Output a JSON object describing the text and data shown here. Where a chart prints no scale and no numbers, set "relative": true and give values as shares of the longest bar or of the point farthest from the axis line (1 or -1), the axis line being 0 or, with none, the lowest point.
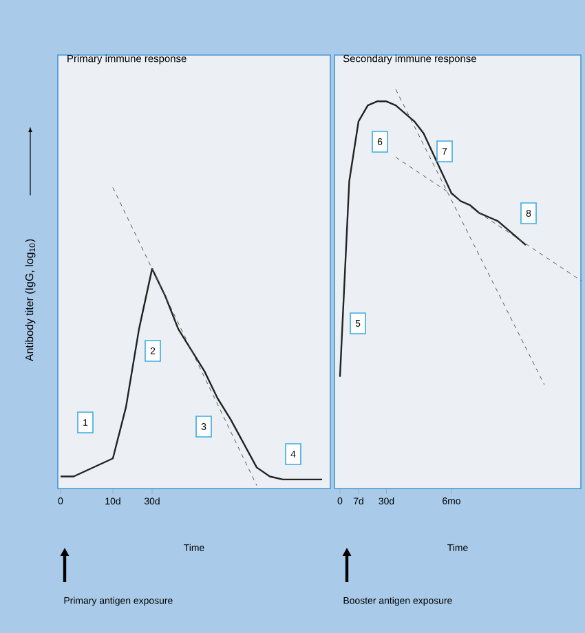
{
  "chart_data": [
    {
      "type": "line",
      "relative": true,
      "title": "Primary immune response",
      "xlabel": "Time",
      "ylabel": "Antibody titer (IgG, log$_{10}$)",
      "categories": [
        "0",
        null,
        null,
        null,
        "10d",
        null,
        null,
        "30d",
        null,
        null,
        null,
        null,
        null,
        null,
        null,
        null,
        null,
        null,
        null,
        null,
        null
      ],
      "series": [
        {
          "color": "#222222",
          "line_style": "solid",
          "values": [
            0.04,
            0.04,
            0.06,
            0.08,
            0.1,
            0.27,
            0.53,
            0.73,
            0.64,
            0.53,
            0.46,
            0.39,
            0.3,
            0.23,
            0.15,
            0.07,
            0.04,
            0.03,
            0.03,
            0.03,
            0.03
          ]
        },
        {
          "color": "#555555",
          "line_style": "dashed",
          "values": [
            null,
            null,
            null,
            null,
            1.0,
            null,
            null,
            null,
            null,
            null,
            null,
            null,
            null,
            null,
            null,
            0.01,
            null,
            null,
            null,
            null,
            null
          ]
        }
      ],
      "annotations": [
        "1",
        "2",
        "3",
        "4",
        "Primary antigen exposure"
      ]
    },
    {
      "type": "line",
      "relative": true,
      "title": "Secondary immune response",
      "xlabel": "Time",
      "categories": [
        "0",
        null,
        "7d",
        null,
        null,
        "30d",
        null,
        null,
        null,
        null,
        null,
        null,
        "6mo",
        null,
        null,
        null,
        null,
        null,
        null,
        null,
        null,
        null,
        null,
        null,
        null,
        null,
        null
      ],
      "series": [
        {
          "color": "#222222",
          "line_style": "solid",
          "values": [
            0.28,
            0.77,
            0.92,
            0.96,
            0.97,
            0.97,
            0.96,
            0.94,
            0.92,
            0.89,
            0.84,
            0.79,
            0.74,
            0.72,
            0.71,
            0.69,
            0.68,
            0.67,
            0.65,
            0.63,
            0.61,
            null,
            null,
            null,
            null,
            null,
            null
          ]
        },
        {
          "color": "#555555",
          "line_style": "dashed",
          "values": [
            null,
            null,
            null,
            null,
            null,
            null,
            1.0,
            null,
            null,
            null,
            null,
            null,
            null,
            null,
            null,
            null,
            null,
            null,
            null,
            null,
            null,
            null,
            0.26,
            null,
            null,
            null,
            null
          ]
        },
        {
          "color": "#555555",
          "line_style": "dashed",
          "values": [
            null,
            null,
            null,
            null,
            null,
            null,
            0.83,
            null,
            null,
            null,
            null,
            null,
            null,
            null,
            null,
            null,
            null,
            null,
            null,
            null,
            null,
            null,
            null,
            null,
            null,
            null,
            0.52
          ]
        }
      ],
      "annotations": [
        "5",
        "6",
        "7",
        "8",
        "Booster antigen exposure"
      ]
    }
  ]
}
